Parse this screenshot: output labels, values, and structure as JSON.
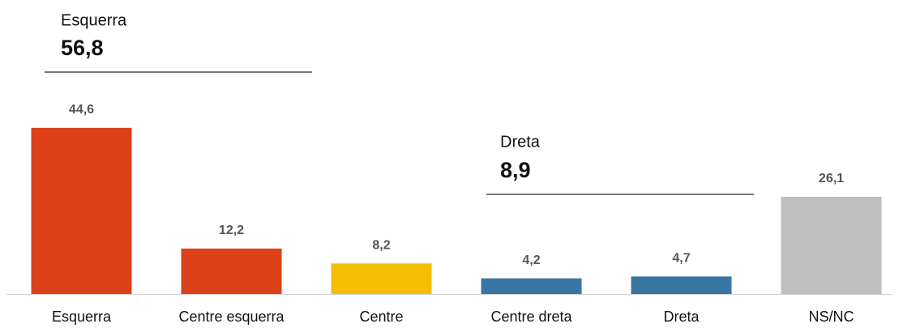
{
  "chart_data": {
    "type": "bar",
    "categories": [
      "Esquerra",
      "Centre esquerra",
      "Centre",
      "Centre dreta",
      "Dreta",
      "NS/NC"
    ],
    "values": [
      44.6,
      12.2,
      8.2,
      4.2,
      4.7,
      26.1
    ],
    "value_labels": [
      "44,6",
      "12,2",
      "8,2",
      "4,2",
      "4,7",
      "26,1"
    ],
    "colors": [
      "#dd4119",
      "#dd4119",
      "#f5be00",
      "#3a76a4",
      "#3a76a4",
      "#bfbfbf"
    ],
    "ylim": [
      0,
      50
    ],
    "annotations": [
      {
        "label": "Esquerra",
        "value": 56.8,
        "value_label": "56,8"
      },
      {
        "label": "Dreta",
        "value": 8.9,
        "value_label": "8,9"
      }
    ]
  }
}
